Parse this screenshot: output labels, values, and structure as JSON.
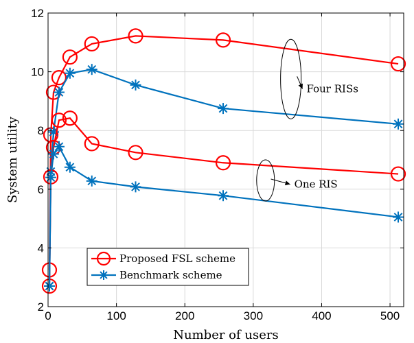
{
  "chart_data": {
    "type": "line",
    "xlabel": "Number of users",
    "ylabel": "System utility",
    "xlim": [
      0,
      520
    ],
    "ylim": [
      2,
      12
    ],
    "xticks": [
      0,
      100,
      200,
      300,
      400,
      500
    ],
    "yticks": [
      2,
      4,
      6,
      8,
      10,
      12
    ],
    "grid": true,
    "legend_position": "bottom-left",
    "series": [
      {
        "name": "Proposed FSL scheme",
        "group": "Four RISs",
        "color": "#ff0000",
        "marker": "circle",
        "x": [
          2,
          4,
          8,
          16,
          32,
          64,
          128,
          256,
          512
        ],
        "y": [
          3.25,
          7.85,
          9.3,
          9.8,
          10.5,
          10.95,
          11.22,
          11.08,
          10.27
        ]
      },
      {
        "name": "Benchmark scheme",
        "group": "Four RISs",
        "color": "#0072bd",
        "marker": "asterisk",
        "x": [
          2,
          4,
          8,
          16,
          32,
          64,
          128,
          256,
          512
        ],
        "y": [
          2.7,
          6.6,
          7.95,
          9.3,
          9.95,
          10.08,
          9.55,
          8.75,
          8.22
        ]
      },
      {
        "name": "Proposed FSL scheme",
        "group": "One RIS",
        "color": "#ff0000",
        "marker": "circle",
        "x": [
          2,
          4,
          8,
          16,
          32,
          64,
          128,
          256,
          512
        ],
        "y": [
          2.7,
          6.42,
          7.42,
          8.35,
          8.42,
          7.55,
          7.25,
          6.9,
          6.52
        ]
      },
      {
        "name": "Benchmark scheme",
        "group": "One RIS",
        "color": "#0072bd",
        "marker": "asterisk",
        "x": [
          2,
          4,
          8,
          16,
          32,
          64,
          128,
          256,
          512
        ],
        "y": [
          2.7,
          6.4,
          7.2,
          7.45,
          6.75,
          6.28,
          6.08,
          5.78,
          5.05
        ]
      }
    ],
    "legend": [
      {
        "label": "Proposed FSL scheme",
        "color": "#ff0000",
        "marker": "circle"
      },
      {
        "label": "Benchmark scheme",
        "color": "#0072bd",
        "marker": "asterisk"
      }
    ],
    "annotations": [
      {
        "text": "Four RISs",
        "ellipse_center": [
          355,
          9.75
        ],
        "label_at": [
          378,
          9.3
        ]
      },
      {
        "text": "One RIS",
        "ellipse_center": [
          318,
          6.3
        ],
        "label_at": [
          360,
          6.05
        ]
      }
    ]
  }
}
